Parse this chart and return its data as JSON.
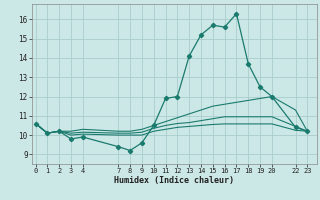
{
  "xlabel": "Humidex (Indice chaleur)",
  "bg_color": "#cce8e6",
  "grid_color": "#aacccc",
  "line_color": "#1a7a6e",
  "xticks": [
    0,
    1,
    2,
    3,
    4,
    7,
    8,
    9,
    10,
    11,
    12,
    13,
    14,
    15,
    16,
    17,
    18,
    19,
    20,
    22,
    23
  ],
  "yticks": [
    9,
    10,
    11,
    12,
    13,
    14,
    15,
    16
  ],
  "xlim": [
    -0.3,
    23.8
  ],
  "ylim": [
    8.5,
    16.8
  ],
  "lines": [
    {
      "x": [
        0,
        1,
        2,
        3,
        4,
        7,
        8,
        9,
        10,
        11,
        12,
        13,
        14,
        15,
        16,
        17,
        18,
        19,
        20,
        22,
        23
      ],
      "y": [
        10.6,
        10.1,
        10.2,
        9.8,
        9.9,
        9.4,
        9.2,
        9.6,
        10.5,
        11.9,
        12.0,
        14.1,
        15.2,
        15.7,
        15.6,
        16.3,
        13.7,
        12.5,
        12.0,
        10.4,
        10.2
      ],
      "marker": true
    },
    {
      "x": [
        0,
        1,
        2,
        3,
        4,
        7,
        8,
        9,
        10,
        11,
        12,
        13,
        14,
        15,
        16,
        17,
        18,
        19,
        20,
        22,
        23
      ],
      "y": [
        10.6,
        10.1,
        10.2,
        10.2,
        10.3,
        10.2,
        10.2,
        10.3,
        10.5,
        10.7,
        10.9,
        11.1,
        11.3,
        11.5,
        11.6,
        11.7,
        11.8,
        11.9,
        12.0,
        11.3,
        10.2
      ],
      "marker": false
    },
    {
      "x": [
        0,
        1,
        2,
        3,
        4,
        7,
        8,
        9,
        10,
        11,
        12,
        13,
        14,
        15,
        16,
        17,
        18,
        19,
        20,
        22,
        23
      ],
      "y": [
        10.6,
        10.1,
        10.2,
        10.1,
        10.15,
        10.1,
        10.1,
        10.15,
        10.35,
        10.5,
        10.6,
        10.65,
        10.75,
        10.85,
        10.95,
        10.95,
        10.95,
        10.95,
        10.95,
        10.45,
        10.2
      ],
      "marker": false
    },
    {
      "x": [
        0,
        1,
        2,
        3,
        4,
        7,
        8,
        9,
        10,
        11,
        12,
        13,
        14,
        15,
        16,
        17,
        18,
        19,
        20,
        22,
        23
      ],
      "y": [
        10.6,
        10.1,
        10.2,
        10.0,
        10.05,
        10.0,
        10.0,
        10.0,
        10.2,
        10.3,
        10.4,
        10.45,
        10.5,
        10.55,
        10.58,
        10.58,
        10.58,
        10.58,
        10.58,
        10.25,
        10.2
      ],
      "marker": false
    }
  ]
}
